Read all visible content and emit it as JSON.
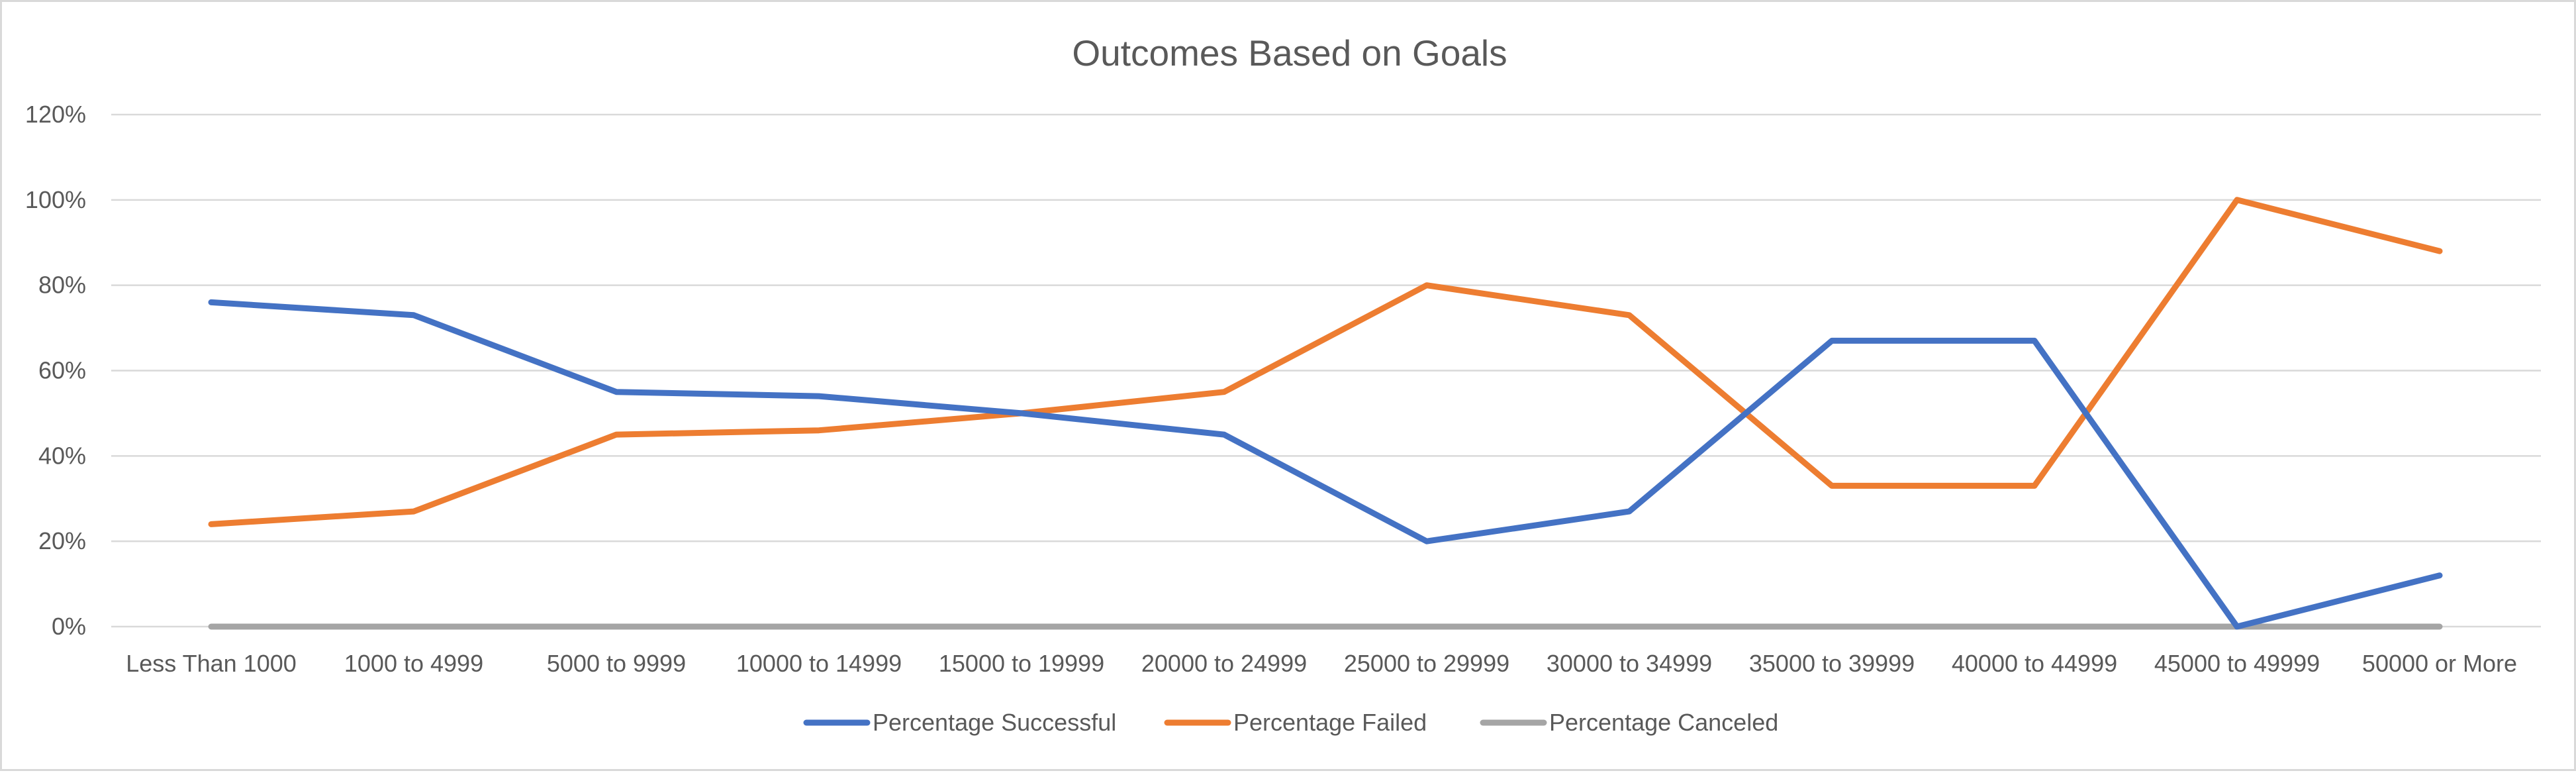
{
  "chart_data": {
    "type": "line",
    "title": "Outcomes Based on Goals",
    "xlabel": "",
    "ylabel": "",
    "ylim": [
      0,
      1.2
    ],
    "y_ticks": [
      0,
      0.2,
      0.4,
      0.6,
      0.8,
      1.0,
      1.2
    ],
    "y_tick_labels": [
      "0%",
      "20%",
      "40%",
      "60%",
      "80%",
      "100%",
      "120%"
    ],
    "grid": true,
    "legend_position": "bottom",
    "categories": [
      "Less Than 1000",
      "1000 to 4999",
      "5000 to 9999",
      "10000 to 14999",
      "15000 to 19999",
      "20000 to 24999",
      "25000 to 29999",
      "30000 to 34999",
      "35000 to 39999",
      "40000 to 44999",
      "45000 to 49999",
      "50000 or More"
    ],
    "series": [
      {
        "name": "Percentage Successful",
        "color": "#4472c4",
        "values": [
          0.76,
          0.73,
          0.55,
          0.54,
          0.5,
          0.45,
          0.2,
          0.27,
          0.67,
          0.67,
          0.0,
          0.12
        ]
      },
      {
        "name": "Percentage Failed",
        "color": "#ed7d31",
        "values": [
          0.24,
          0.27,
          0.45,
          0.46,
          0.5,
          0.55,
          0.8,
          0.73,
          0.33,
          0.33,
          1.0,
          0.88
        ]
      },
      {
        "name": "Percentage Canceled",
        "color": "#a5a5a5",
        "values": [
          0,
          0,
          0,
          0,
          0,
          0,
          0,
          0,
          0,
          0,
          0,
          0
        ]
      }
    ]
  }
}
